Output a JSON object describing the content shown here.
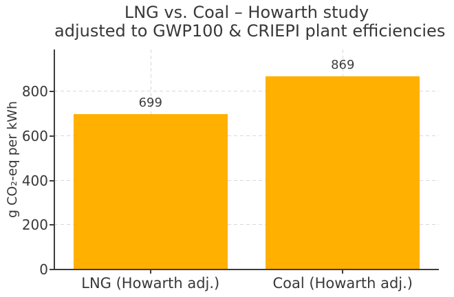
{
  "chart_data": {
    "type": "bar",
    "title_lines": [
      "LNG vs. Coal – Howarth study",
      "adjusted to GWP100 & CRIEPI plant efficiencies"
    ],
    "categories": [
      "LNG (Howarth adj.)",
      "Coal (Howarth adj.)"
    ],
    "values": [
      699,
      869
    ],
    "bar_value_labels": [
      "699",
      "869"
    ],
    "xlabel": "",
    "ylabel": "g CO₂-eq per kWh",
    "yticks": [
      0,
      200,
      400,
      600,
      800
    ],
    "ylim": [
      0,
      990
    ],
    "bar_color": "#FFB000",
    "grid": "dashed-horizontal-and-vertical",
    "legend_position": "none"
  }
}
